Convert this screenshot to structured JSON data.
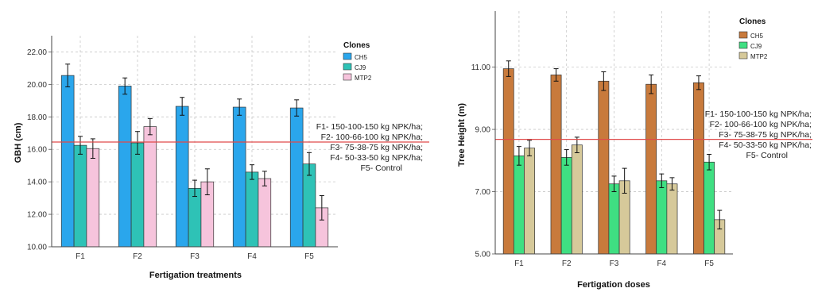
{
  "colors": {
    "chart1": [
      "#2aa6ec",
      "#2ec2b6",
      "#f6c4dc"
    ],
    "chart2": [
      "#c87a3c",
      "#3fdf82",
      "#d6c99a"
    ],
    "reference_line": "#e04a4a",
    "grid": "#c8c8c8"
  },
  "chart_data": [
    {
      "type": "bar",
      "categories": [
        "F1",
        "F2",
        "F3",
        "F4",
        "F5"
      ],
      "series": [
        {
          "name": "CH5",
          "values": [
            20.55,
            19.9,
            18.65,
            18.6,
            18.55
          ],
          "errors": [
            0.7,
            0.5,
            0.55,
            0.5,
            0.5
          ]
        },
        {
          "name": "CJ9",
          "values": [
            16.25,
            16.4,
            13.6,
            14.6,
            15.1
          ],
          "errors": [
            0.55,
            0.7,
            0.5,
            0.45,
            0.7
          ]
        },
        {
          "name": "MTP2",
          "values": [
            16.05,
            17.4,
            14.0,
            14.2,
            12.4
          ],
          "errors": [
            0.6,
            0.5,
            0.8,
            0.45,
            0.75
          ]
        }
      ],
      "reference_line": 16.45,
      "xlabel": "Fertigation treatments",
      "ylabel": "GBH (cm)",
      "ylim": [
        10,
        23
      ],
      "yticks": [
        "10.00",
        "12.00",
        "14.00",
        "16.00",
        "18.00",
        "20.00",
        "22.00"
      ],
      "legend_title": "Clones",
      "legend_position": "top-right",
      "grid": true,
      "notes": [
        "F1- 150-100-150 kg NPK/ha;",
        "F2- 100-66-100 kg NPK/ha;",
        "F3- 75-38-75 kg NPK/ha;",
        "F4- 50-33-50 kg NPK/ha;",
        "F5- Control"
      ]
    },
    {
      "type": "bar",
      "categories": [
        "F1",
        "F2",
        "F3",
        "F4",
        "F5"
      ],
      "series": [
        {
          "name": "CH5",
          "values": [
            10.95,
            10.75,
            10.55,
            10.45,
            10.5
          ],
          "errors": [
            0.25,
            0.2,
            0.3,
            0.3,
            0.22
          ]
        },
        {
          "name": "CJ9",
          "values": [
            8.15,
            8.1,
            7.25,
            7.35,
            7.95
          ],
          "errors": [
            0.3,
            0.25,
            0.25,
            0.22,
            0.25
          ]
        },
        {
          "name": "MTP2",
          "values": [
            8.4,
            8.5,
            7.35,
            7.25,
            6.1
          ],
          "errors": [
            0.25,
            0.25,
            0.4,
            0.2,
            0.3
          ]
        }
      ],
      "reference_line": 8.68,
      "xlabel": "Fertigation doses",
      "ylabel": "Tree Height (m)",
      "ylim": [
        5,
        12.8
      ],
      "yticks": [
        "5.00",
        "7.00",
        "9.00",
        "11.00"
      ],
      "legend_title": "Clones",
      "legend_position": "top-right",
      "grid": true,
      "notes": [
        "F1- 150-100-150 kg NPK/ha;",
        "F2- 100-66-100 kg NPK/ha;",
        "F3- 75-38-75 kg NPK/ha;",
        "F4- 50-33-50 kg NPK/ha;",
        "F5- Control"
      ]
    }
  ]
}
